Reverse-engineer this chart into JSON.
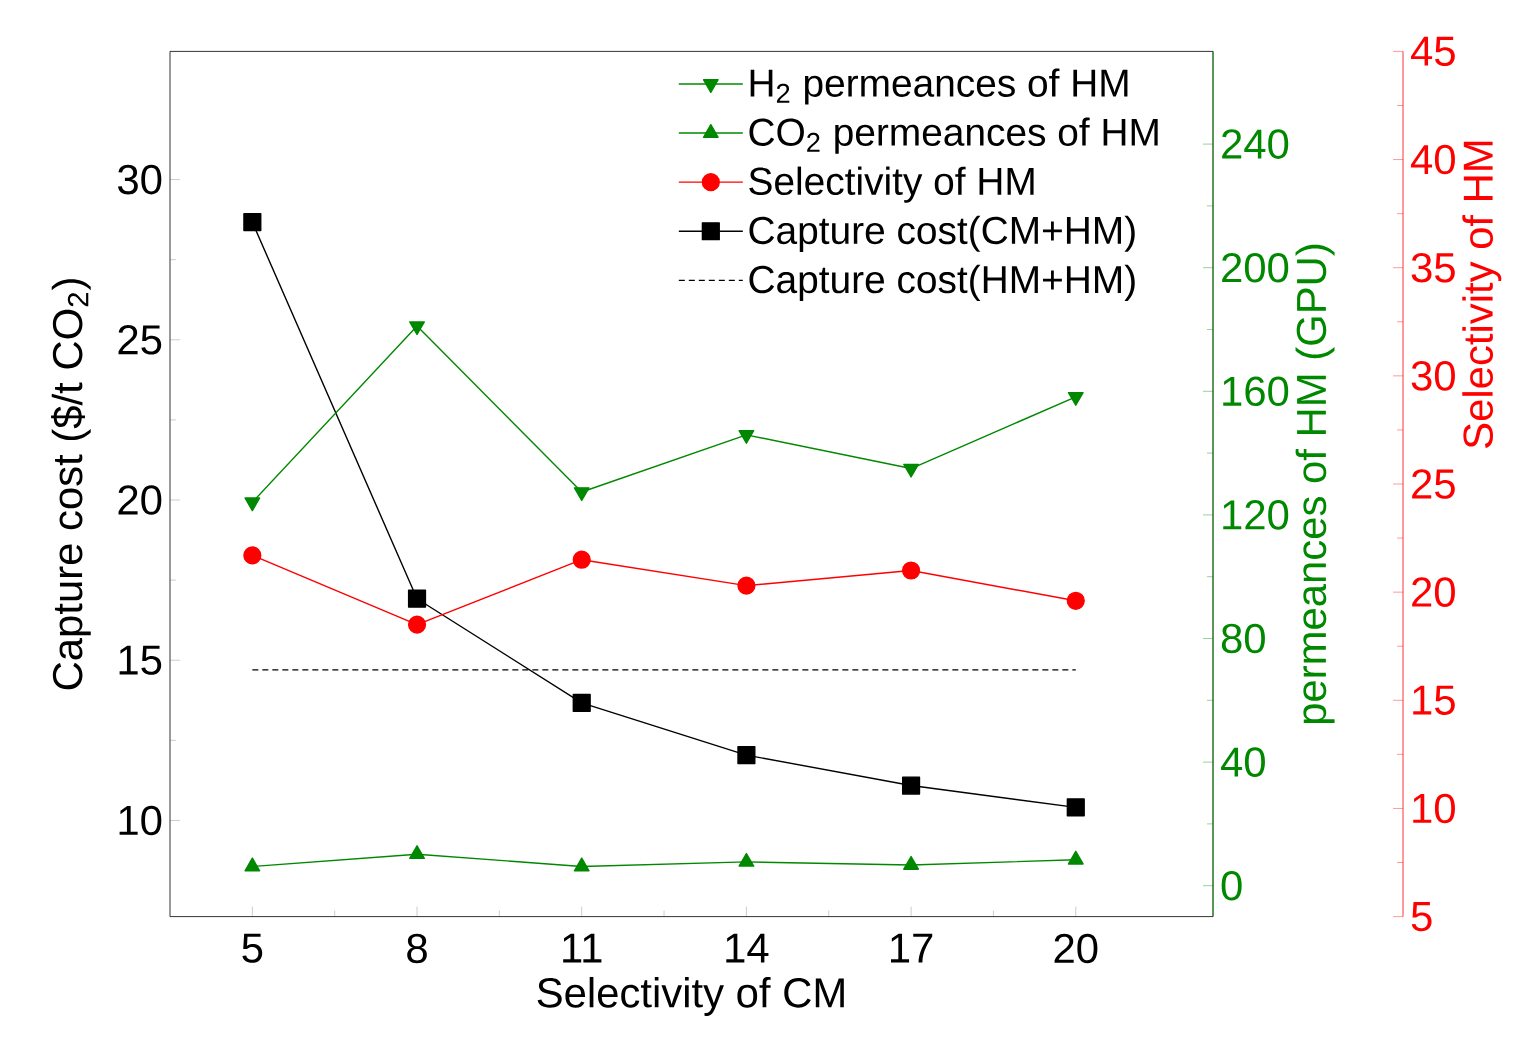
{
  "chart_data": {
    "type": "line",
    "xlabel": "Selectivity of CM",
    "ylabel": "Capture cost ($/t CO$_{2}$)",
    "y2label": "permeances of HM (GPU)",
    "y3label": "Selectivity of HM",
    "x": [
      5,
      8,
      11,
      14,
      17,
      20
    ],
    "xlim": [
      3.5,
      22.5
    ],
    "xticks": [
      5,
      8,
      11,
      14,
      17,
      20
    ],
    "ylim": [
      7,
      34
    ],
    "yticks": [
      10,
      15,
      20,
      25,
      30
    ],
    "y2lim": [
      -10,
      270
    ],
    "y2ticks": [
      0,
      40,
      80,
      120,
      160,
      200,
      240
    ],
    "y3lim": [
      5,
      45
    ],
    "y3ticks": [
      5,
      10,
      15,
      20,
      25,
      30,
      35,
      40,
      45
    ],
    "legend": "top right",
    "grid": false,
    "series": [
      {
        "name": "H$_{2}$ permeances of HM",
        "color": "#008800",
        "axis": "y2",
        "marker": "triangle-down",
        "line_style": "solid",
        "values": [
          124.1,
          181.1,
          127.4,
          145.9,
          135.0,
          158.2
        ]
      },
      {
        "name": "CO$_{2}$ permeances of HM",
        "color": "#008800",
        "axis": "y2",
        "marker": "triangle",
        "line_style": "solid",
        "values": [
          6.2,
          10.2,
          6.2,
          7.7,
          6.7,
          8.4
        ]
      },
      {
        "name": "Selectivity of HM",
        "color": "#ff0000",
        "axis": "y3",
        "marker": "circle",
        "line_style": "solid",
        "values": [
          21.7,
          18.5,
          21.5,
          20.3,
          21.0,
          19.6
        ]
      },
      {
        "name": "Capture cost(CM+HM)",
        "color": "#000000",
        "axis": "y",
        "marker": "square",
        "line_style": "solid",
        "values": [
          28.67,
          16.92,
          13.67,
          12.04,
          11.09,
          10.41
        ]
      },
      {
        "name": "Capture cost(HM+HM)",
        "color": "#000000",
        "axis": "y",
        "marker": "none",
        "line_style": "dashed",
        "values": [
          14.7,
          14.7,
          14.7,
          14.7,
          14.7,
          14.7
        ]
      }
    ]
  }
}
